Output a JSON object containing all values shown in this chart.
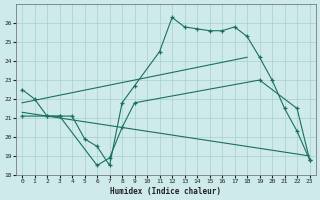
{
  "xlabel": "Humidex (Indice chaleur)",
  "bg_color": "#ceeaea",
  "grid_color": "#a8d0d0",
  "line_color": "#1a7060",
  "xlim": [
    -0.5,
    23.5
  ],
  "ylim": [
    18,
    27
  ],
  "yticks": [
    18,
    19,
    20,
    21,
    22,
    23,
    24,
    25,
    26
  ],
  "xticks": [
    0,
    1,
    2,
    3,
    4,
    5,
    6,
    7,
    8,
    9,
    10,
    11,
    12,
    13,
    14,
    15,
    16,
    17,
    18,
    19,
    20,
    21,
    22,
    23
  ],
  "series1_x": [
    0,
    1,
    2,
    3,
    4,
    5,
    6,
    7,
    8,
    9,
    11,
    12,
    13,
    14,
    15,
    16,
    17,
    18,
    19,
    20,
    21,
    22,
    23
  ],
  "series1_y": [
    22.5,
    22.0,
    21.1,
    21.1,
    21.1,
    19.9,
    19.5,
    18.5,
    21.8,
    22.7,
    24.5,
    26.3,
    25.8,
    25.7,
    25.6,
    25.6,
    25.8,
    25.3,
    24.2,
    23.0,
    21.5,
    20.3,
    18.8
  ],
  "series2_x": [
    0,
    2,
    3,
    6,
    7,
    8,
    9,
    19,
    22,
    23
  ],
  "series2_y": [
    21.1,
    21.1,
    21.1,
    18.5,
    18.9,
    20.5,
    21.8,
    23.0,
    21.5,
    18.8
  ],
  "series3_x": [
    0,
    18
  ],
  "series3_y": [
    21.8,
    24.2
  ],
  "series4_x": [
    0,
    23
  ],
  "series4_y": [
    21.3,
    19.0
  ]
}
